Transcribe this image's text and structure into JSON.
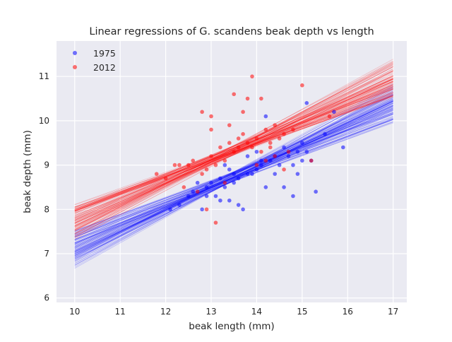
{
  "chart_data": {
    "type": "scatter",
    "title": "Linear regressions of G. scandens beak depth vs length",
    "xlabel": "beak length (mm)",
    "ylabel": "beak depth (mm)",
    "xlim": [
      9.6,
      17.3
    ],
    "ylim": [
      5.9,
      11.8
    ],
    "x_ticks": [
      "10",
      "11",
      "12",
      "13",
      "14",
      "15",
      "16",
      "17"
    ],
    "y_ticks": [
      "6",
      "7",
      "8",
      "9",
      "10",
      "11"
    ],
    "grid": true,
    "legend_position": "top-left",
    "style": "seaborn-darkgrid",
    "colors": {
      "background": "#EAEAF2",
      "grid": "#FFFFFF",
      "text": "#262626"
    },
    "series": [
      {
        "name": "1975",
        "color": "#0000FF",
        "points": [
          [
            12.3,
            8.1
          ],
          [
            12.6,
            8.4
          ],
          [
            12.7,
            8.6
          ],
          [
            12.8,
            8.0
          ],
          [
            12.9,
            8.5
          ],
          [
            13.0,
            8.6
          ],
          [
            13.1,
            8.3
          ],
          [
            13.2,
            8.2
          ],
          [
            13.3,
            8.5
          ],
          [
            13.4,
            8.2
          ],
          [
            13.5,
            8.6
          ],
          [
            13.6,
            8.1
          ],
          [
            13.7,
            8.0
          ],
          [
            13.8,
            8.8
          ],
          [
            13.9,
            8.8
          ],
          [
            14.0,
            8.9
          ],
          [
            14.1,
            9.0
          ],
          [
            14.2,
            8.5
          ],
          [
            14.3,
            9.1
          ],
          [
            14.4,
            8.8
          ],
          [
            14.5,
            9.0
          ],
          [
            14.6,
            8.5
          ],
          [
            14.7,
            9.2
          ],
          [
            14.8,
            8.3
          ],
          [
            14.9,
            9.3
          ],
          [
            15.0,
            9.5
          ],
          [
            15.1,
            9.3
          ],
          [
            15.2,
            9.1
          ],
          [
            15.3,
            8.4
          ],
          [
            15.5,
            9.7
          ],
          [
            15.7,
            10.2
          ],
          [
            15.9,
            9.4
          ],
          [
            15.1,
            10.4
          ],
          [
            14.2,
            10.1
          ],
          [
            14.0,
            9.3
          ],
          [
            13.5,
            8.8
          ],
          [
            13.2,
            8.7
          ],
          [
            12.9,
            8.3
          ],
          [
            14.6,
            9.4
          ],
          [
            14.8,
            9.0
          ],
          [
            13.8,
            9.2
          ],
          [
            14.1,
            9.1
          ],
          [
            13.4,
            8.9
          ],
          [
            12.1,
            8.0
          ],
          [
            12.5,
            8.3
          ],
          [
            14.9,
            8.8
          ],
          [
            13.6,
            8.7
          ],
          [
            14.4,
            9.2
          ],
          [
            15.0,
            9.1
          ],
          [
            13.3,
            9.0
          ]
        ],
        "regression": {
          "slope": 0.472,
          "intercept": 2.37
        }
      },
      {
        "name": "2012",
        "color": "#FF0000",
        "points": [
          [
            11.8,
            8.8
          ],
          [
            12.0,
            8.7
          ],
          [
            12.2,
            9.0
          ],
          [
            12.4,
            8.5
          ],
          [
            12.5,
            9.0
          ],
          [
            12.6,
            9.1
          ],
          [
            12.8,
            8.8
          ],
          [
            12.9,
            8.9
          ],
          [
            13.0,
            9.2
          ],
          [
            13.1,
            9.0
          ],
          [
            13.2,
            9.4
          ],
          [
            13.3,
            9.1
          ],
          [
            13.4,
            9.5
          ],
          [
            13.5,
            9.3
          ],
          [
            13.6,
            9.6
          ],
          [
            13.7,
            9.7
          ],
          [
            13.8,
            9.5
          ],
          [
            13.9,
            9.4
          ],
          [
            14.0,
            9.6
          ],
          [
            14.1,
            9.3
          ],
          [
            14.2,
            9.8
          ],
          [
            14.3,
            9.5
          ],
          [
            14.4,
            9.9
          ],
          [
            14.5,
            9.6
          ],
          [
            14.6,
            9.7
          ],
          [
            14.7,
            9.3
          ],
          [
            14.8,
            9.8
          ],
          [
            15.0,
            10.8
          ],
          [
            13.9,
            11.0
          ],
          [
            14.1,
            10.5
          ],
          [
            13.5,
            10.6
          ],
          [
            13.7,
            10.2
          ],
          [
            12.8,
            10.2
          ],
          [
            13.0,
            10.1
          ],
          [
            13.4,
            9.9
          ],
          [
            15.6,
            10.1
          ],
          [
            15.2,
            9.1
          ],
          [
            12.9,
            8.0
          ],
          [
            13.1,
            7.7
          ],
          [
            14.2,
            9.1
          ],
          [
            13.3,
            8.6
          ],
          [
            12.3,
            9.0
          ],
          [
            14.6,
            8.9
          ],
          [
            14.0,
            9.0
          ],
          [
            13.6,
            9.4
          ],
          [
            13.8,
            10.5
          ],
          [
            12.7,
            8.4
          ],
          [
            14.3,
            9.4
          ],
          [
            13.0,
            9.8
          ],
          [
            14.4,
            9.2
          ]
        ],
        "regression": {
          "slope": 0.462,
          "intercept": 3.1
        }
      }
    ]
  }
}
